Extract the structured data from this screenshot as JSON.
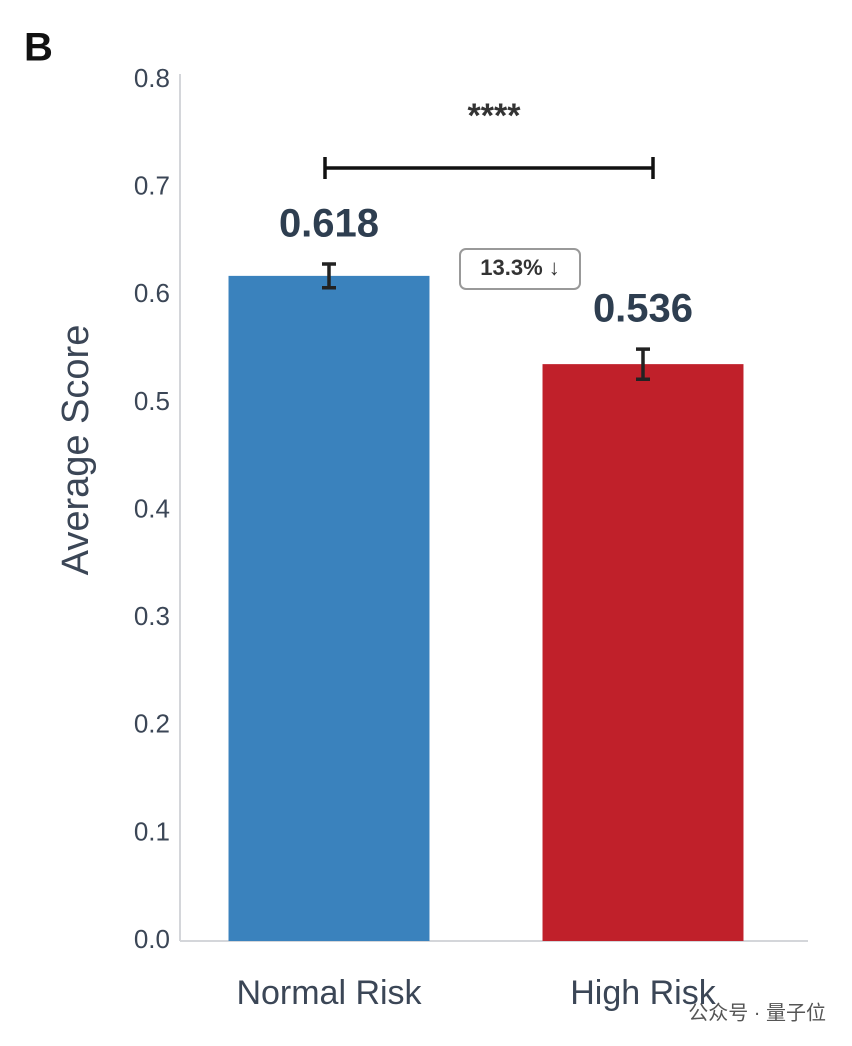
{
  "chart_data": {
    "type": "bar",
    "panel_label": "B",
    "ylabel": "Average Score",
    "categories": [
      "Normal Risk",
      "High Risk"
    ],
    "values": [
      0.618,
      0.536
    ],
    "errors": [
      0.011,
      0.014
    ],
    "colors": [
      "#3a82bd",
      "#c0202a"
    ],
    "ylim": [
      0,
      0.8
    ],
    "yticks": [
      {
        "value": 0,
        "label": "0.0"
      },
      0.1,
      0.2,
      0.3,
      0.4,
      0.5,
      0.6,
      0.7,
      0.8
    ],
    "grid": false,
    "significance": "****",
    "change_label": "13.3% ↓"
  },
  "watermark": "公众号 · 量子位"
}
